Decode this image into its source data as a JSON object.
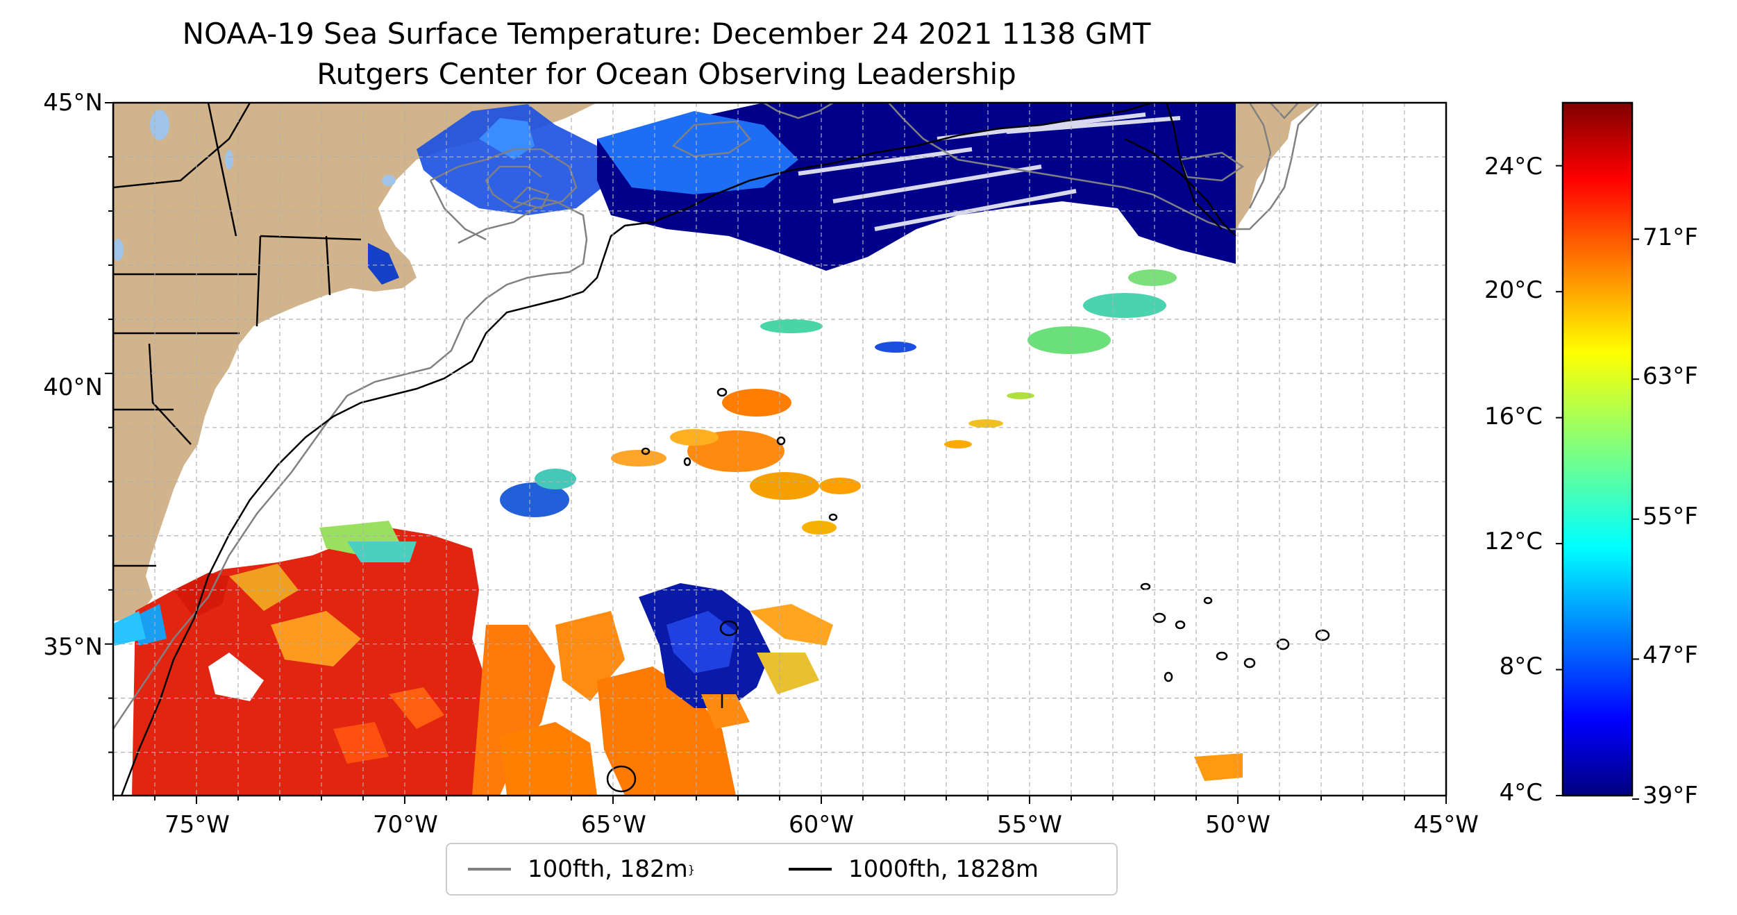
{
  "header": {
    "title": "NOAA-19 Sea Surface Temperature: December 24 2021 1138 GMT",
    "subtitle": "Rutgers Center for Ocean Observing Leadership"
  },
  "axes": {
    "x_ticks": [
      "75°W",
      "70°W",
      "65°W",
      "60°W",
      "55°W",
      "50°W",
      "45°W"
    ],
    "y_ticks": [
      "45°N",
      "40°N",
      "35°N"
    ],
    "lon_range": [
      -77,
      -45
    ],
    "lat_range": [
      32.2,
      45
    ],
    "grid": "dashed, 1° spacing"
  },
  "colorbar": {
    "colormap": "jet",
    "celsius_labels": [
      "24°C",
      "20°C",
      "16°C",
      "12°C",
      "8°C",
      "4°C"
    ],
    "fahrenheit_labels": [
      "71°F",
      "63°F",
      "55°F",
      "47°F",
      "39°F"
    ],
    "range_c": [
      4,
      26
    ]
  },
  "legend": {
    "placement": "below map",
    "items": [
      {
        "label": "100fth, 182m",
        "color": "#808080"
      },
      {
        "label": "1000fth, 1828m",
        "color": "#000000"
      }
    ]
  },
  "colors": {
    "land": "#d2b48c",
    "lakes": "#a0c4e8",
    "ocean_no_data": "#ffffff",
    "cold_water": "#00008b",
    "warm_water": "#e8200a"
  }
}
